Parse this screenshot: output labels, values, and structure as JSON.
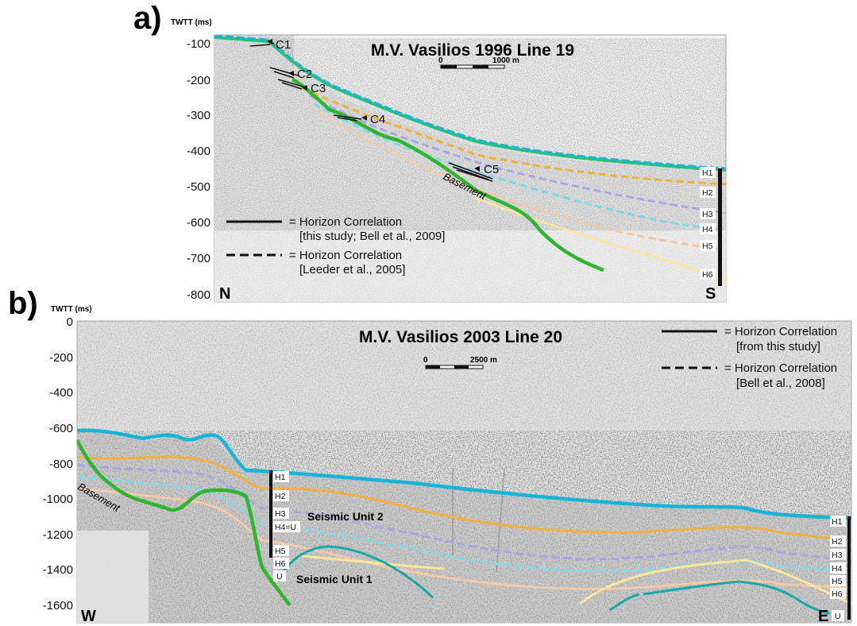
{
  "panel_a": {
    "letter": "a)",
    "axis_title": "TWTT (ms)",
    "title": "M.V. Vasilios 1996 Line 19",
    "scale_start": "0",
    "scale_end": "1000 m",
    "compass_left": "N",
    "compass_right": "S",
    "y_ticks": [
      "-100",
      "-200",
      "-300",
      "-400",
      "-500",
      "-600",
      "-700",
      "-800"
    ],
    "callouts": [
      "C1",
      "C2",
      "C3",
      "C4",
      "C5"
    ],
    "basement_label": "Basement",
    "legend": {
      "solid_line1": "= Horizon Correlation",
      "solid_line2": "[this study; Bell et al., 2009]",
      "dashed_line1": "= Horizon Correlation",
      "dashed_line2": "[Leeder et al., 2005]"
    },
    "horizon_labels": [
      "H1",
      "H2",
      "H3",
      "H4",
      "H5",
      "H6"
    ]
  },
  "panel_b": {
    "letter": "b)",
    "axis_title": "TWTT (ms)",
    "title": "M.V. Vasilios 2003 Line 20",
    "scale_start": "0",
    "scale_end": "2500 m",
    "compass_left": "W",
    "compass_right": "E",
    "y_ticks": [
      "0",
      "-200",
      "-400",
      "-600",
      "-800",
      "-1000",
      "-1200",
      "-1400",
      "-1600"
    ],
    "basement_label": "Basement",
    "legend": {
      "solid_line1": "= Horizon Correlation",
      "solid_line2": "[from this study]",
      "dashed_line1": "= Horizon Correlation",
      "dashed_line2": "[Bell et al., 2008]"
    },
    "mid_labels": [
      "H1",
      "H2",
      "H3",
      "H4=U",
      "H5",
      "H6",
      "U"
    ],
    "right_labels": [
      "H1",
      "H2",
      "H3",
      "H4",
      "H5",
      "H6",
      "U"
    ],
    "seismic_unit_2": "Seismic Unit 2",
    "seismic_unit_1": "Seismic Unit 1"
  },
  "colors": {
    "seafloor": "#19b5d8",
    "seafloor_green": "#2bbf7a",
    "basement": "#2fb52f",
    "H2": "#f5b23c",
    "H3": "#a8a8e6",
    "H4": "#7fdce6",
    "H5": "#f6c9a6",
    "H6": "#fbe79a",
    "U": "#18a9a9",
    "section_bg": "#e7e7e7"
  }
}
